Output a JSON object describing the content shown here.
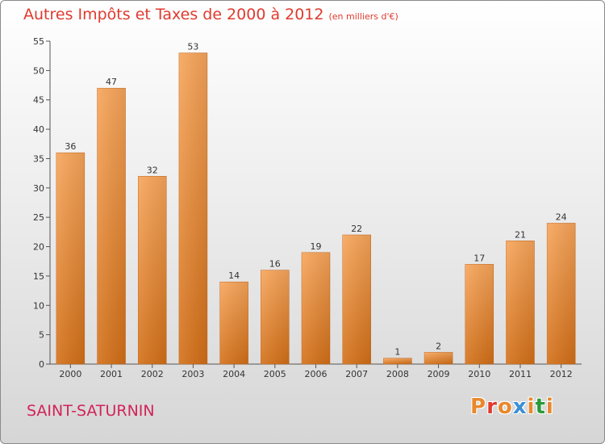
{
  "chart_data": {
    "type": "bar",
    "title": "Autres Impôts et Taxes de 2000 à 2012",
    "subtitle": "(en milliers d'€)",
    "categories": [
      "2000",
      "2001",
      "2002",
      "2003",
      "2004",
      "2005",
      "2006",
      "2007",
      "2008",
      "2009",
      "2010",
      "2011",
      "2012"
    ],
    "values": [
      36,
      47,
      32,
      53,
      14,
      16,
      19,
      22,
      1,
      2,
      17,
      21,
      24
    ],
    "ylim": [
      0,
      55
    ],
    "yticks": [
      0,
      5,
      10,
      15,
      20,
      25,
      30,
      35,
      40,
      45,
      50,
      55
    ],
    "grid": false,
    "bar_color": "#e8882e"
  },
  "footer": {
    "commune": "SAINT-SATURNIN",
    "logo": "Proxiti"
  },
  "colors": {
    "title": "#e03a2e",
    "commune": "#d1245a",
    "logo_letters": [
      "#e8882e",
      "#e03a2e",
      "#e8882e",
      "#3a8fd6",
      "#e8882e",
      "#2a9a3a",
      "#e8882e"
    ]
  }
}
